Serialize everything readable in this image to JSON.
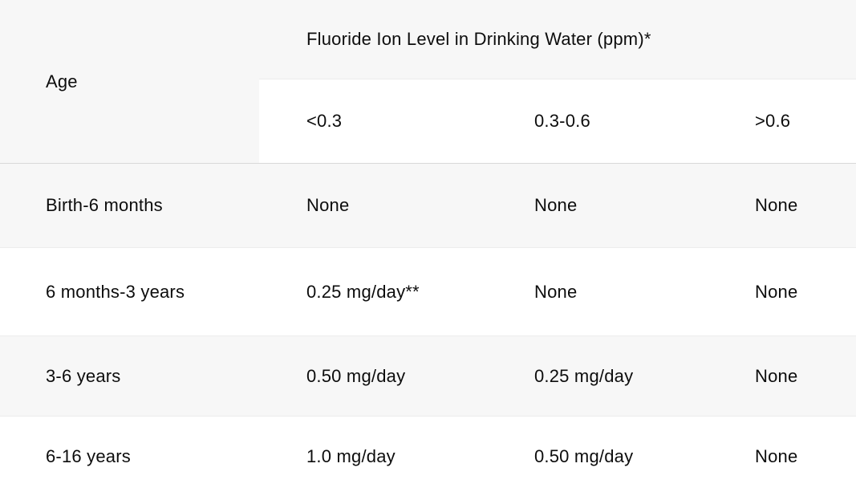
{
  "table": {
    "corner_header": "Age",
    "group_header": "Fluoride Ion Level in Drinking Water (ppm)*",
    "sub_headers": [
      "<0.3",
      "0.3-0.6",
      ">0.6"
    ],
    "rows": [
      {
        "age": "Birth-6 months",
        "values": [
          "None",
          "None",
          "None"
        ]
      },
      {
        "age": "6 months-3 years",
        "values": [
          "0.25 mg/day**",
          "None",
          "None"
        ]
      },
      {
        "age": "3-6 years",
        "values": [
          "0.50 mg/day",
          "0.25 mg/day",
          "None"
        ]
      },
      {
        "age": "6-16 years",
        "values": [
          "1.0 mg/day",
          "0.50 mg/day",
          "None"
        ]
      }
    ],
    "colors": {
      "stripe": "#f7f7f7",
      "row_border": "#ececec",
      "header_border": "#d9d9d9",
      "text": "#0d0d0d",
      "background": "#ffffff"
    }
  }
}
